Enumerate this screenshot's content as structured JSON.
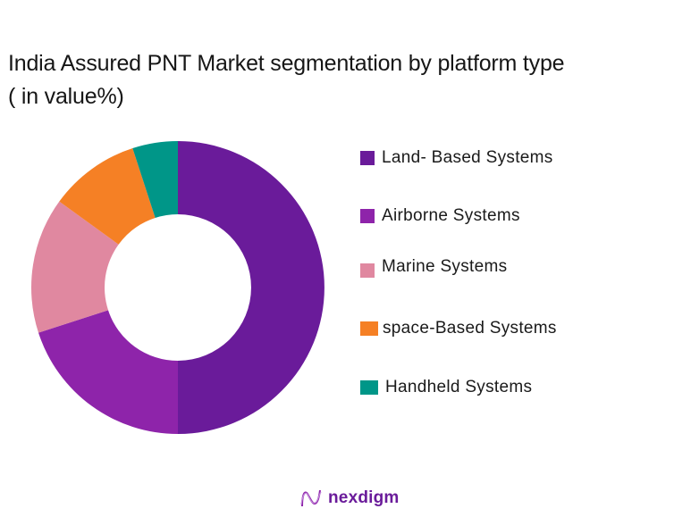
{
  "title": {
    "line1": "India Assured PNT Market segmentation by platform type",
    "line2": "( in value%)"
  },
  "chart_data": {
    "type": "pie",
    "variant": "donut",
    "title": "India Assured PNT Market segmentation by platform type ( in value%)",
    "categories": [
      "Land- Based Systems",
      "Airborne Systems",
      "Marine Systems",
      "space-Based Systems",
      "Handheld Systems"
    ],
    "values": [
      50,
      20,
      15,
      10,
      5
    ],
    "colors": [
      "#6a1b9a",
      "#8e24aa",
      "#e088a0",
      "#f58025",
      "#009688"
    ],
    "start_angle": "12 o'clock, clockwise",
    "legend_position": "right",
    "data_labels": false
  },
  "legend": {
    "items": [
      {
        "label": "Land- Based Systems",
        "color": "#6a1b9a"
      },
      {
        "label": "Airborne Systems",
        "color": "#8e24aa"
      },
      {
        "label": "Marine Systems",
        "color": "#e088a0"
      },
      {
        "label": "space-Based Systems",
        "color": "#f58025"
      },
      {
        "label": "Handheld Systems",
        "color": "#009688"
      }
    ]
  },
  "brand": {
    "name": "nexdigm"
  }
}
